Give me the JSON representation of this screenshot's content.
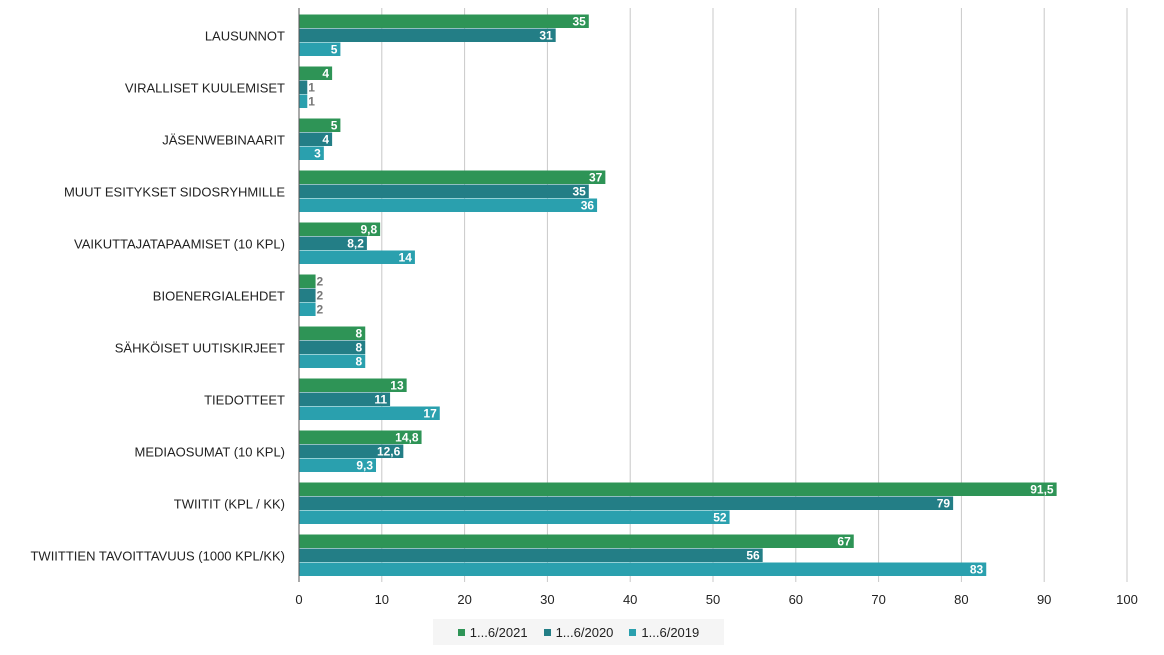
{
  "chart_data": {
    "type": "bar",
    "orientation": "horizontal",
    "categories": [
      "LAUSUNNOT",
      "VIRALLISET KUULEMISET",
      "JÄSENWEBINAARIT",
      "MUUT ESITYKSET SIDOSRYHMILLE",
      "VAIKUTTAJATAPAAMISET (10 KPL)",
      "BIOENERGIALEHDET",
      "SÄHKÖISET UUTISKIRJEET",
      "TIEDOTTEET",
      "MEDIAOSUMAT (10 KPL)",
      "TWIITIT (KPL / KK)",
      "TWIITTIEN TAVOITTAVUUS (1000 KPL/KK)"
    ],
    "series": [
      {
        "name": "1...6/2021",
        "color": "#2e9456",
        "values": [
          35,
          4,
          5,
          37,
          9.8,
          2,
          8,
          13,
          14.8,
          91.5,
          67
        ],
        "labels": [
          "35",
          "4",
          "5",
          "37",
          "9,8",
          "2",
          "8",
          "13",
          "14,8",
          "91,5",
          "67"
        ]
      },
      {
        "name": "1...6/2020",
        "color": "#237e86",
        "values": [
          31,
          1,
          4,
          35,
          8.2,
          2,
          8,
          11,
          12.6,
          79,
          56
        ],
        "labels": [
          "31",
          "1",
          "4",
          "35",
          "8,2",
          "2",
          "8",
          "11",
          "12,6",
          "79",
          "56"
        ]
      },
      {
        "name": "1...6/2019",
        "color": "#2aa0ae",
        "values": [
          5,
          1,
          3,
          36,
          14,
          2,
          8,
          17,
          9.3,
          52,
          83
        ],
        "labels": [
          "5",
          "1",
          "3",
          "36",
          "14",
          "2",
          "8",
          "17",
          "9,3",
          "52",
          "83"
        ]
      }
    ],
    "x_ticks": [
      "0",
      "10",
      "20",
      "30",
      "40",
      "50",
      "60",
      "70",
      "80",
      "90",
      "100"
    ],
    "xlim": [
      0,
      100
    ],
    "grid": true,
    "legend_position": "bottom-center",
    "title": "",
    "xlabel": "",
    "ylabel": ""
  }
}
